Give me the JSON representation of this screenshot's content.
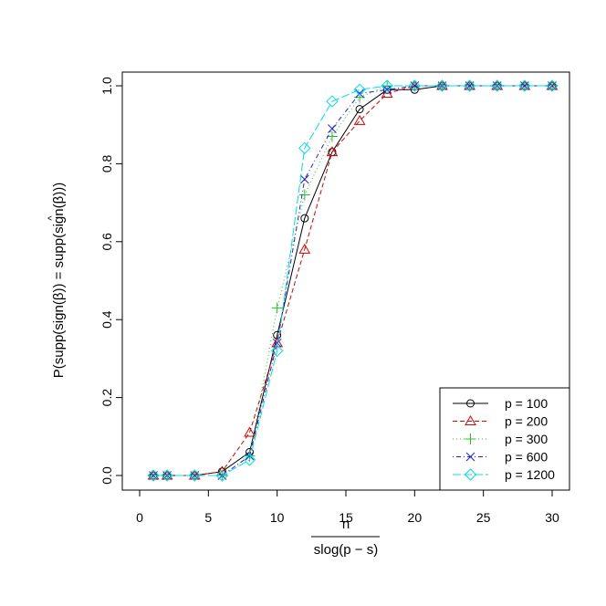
{
  "chart_data": {
    "type": "line",
    "title": "",
    "xlabel_num": "n",
    "xlabel_den": "slog(p − s)",
    "ylabel_pre": "P(supp(sign(",
    "ylabel_hat": "β",
    "ylabel_mid": ")) = supp(sign(",
    "ylabel_beta": "β",
    "ylabel_post": ")))",
    "hat_glyph": "^",
    "xlim": [
      0,
      30
    ],
    "ylim": [
      0,
      1
    ],
    "xticks": [
      0,
      5,
      10,
      15,
      20,
      25,
      30
    ],
    "yticks": [
      0.0,
      0.2,
      0.4,
      0.6,
      0.8,
      1.0
    ],
    "grid": false,
    "legend_position": "bottom-right",
    "x": [
      1,
      2,
      4,
      6,
      8,
      10,
      12,
      14,
      16,
      18,
      20,
      22,
      24,
      26,
      28,
      30
    ],
    "series": [
      {
        "name": "p = 100",
        "color": "#000000",
        "marker": "circle",
        "dash": "",
        "values": [
          0,
          0,
          0,
          0.01,
          0.06,
          0.36,
          0.66,
          0.83,
          0.94,
          0.99,
          0.99,
          1,
          1,
          1,
          1,
          1
        ]
      },
      {
        "name": "p = 200",
        "color": "#df0000",
        "marker": "triangle",
        "dash": "5,3",
        "values": [
          0,
          0,
          0,
          0.01,
          0.11,
          0.34,
          0.58,
          0.83,
          0.91,
          0.98,
          1,
          1,
          1,
          1,
          1,
          1
        ]
      },
      {
        "name": "p = 300",
        "color": "#28c028",
        "marker": "plus",
        "dash": "1,3",
        "values": [
          0,
          0,
          0,
          0,
          0.05,
          0.43,
          0.72,
          0.87,
          0.97,
          1,
          1,
          1,
          1,
          1,
          1,
          1
        ]
      },
      {
        "name": "p = 600",
        "color": "#2020e0",
        "marker": "cross",
        "dash": "1,3,5,3",
        "values": [
          0,
          0,
          0,
          0,
          0.05,
          0.34,
          0.76,
          0.89,
          0.98,
          0.99,
          1,
          1,
          1,
          1,
          1,
          1
        ]
      },
      {
        "name": "p = 1200",
        "color": "#00e0e0",
        "marker": "diamond",
        "dash": "9,3",
        "values": [
          0,
          0,
          0,
          0,
          0.04,
          0.32,
          0.84,
          0.96,
          0.99,
          1,
          1,
          1,
          1,
          1,
          1,
          1
        ]
      }
    ]
  }
}
